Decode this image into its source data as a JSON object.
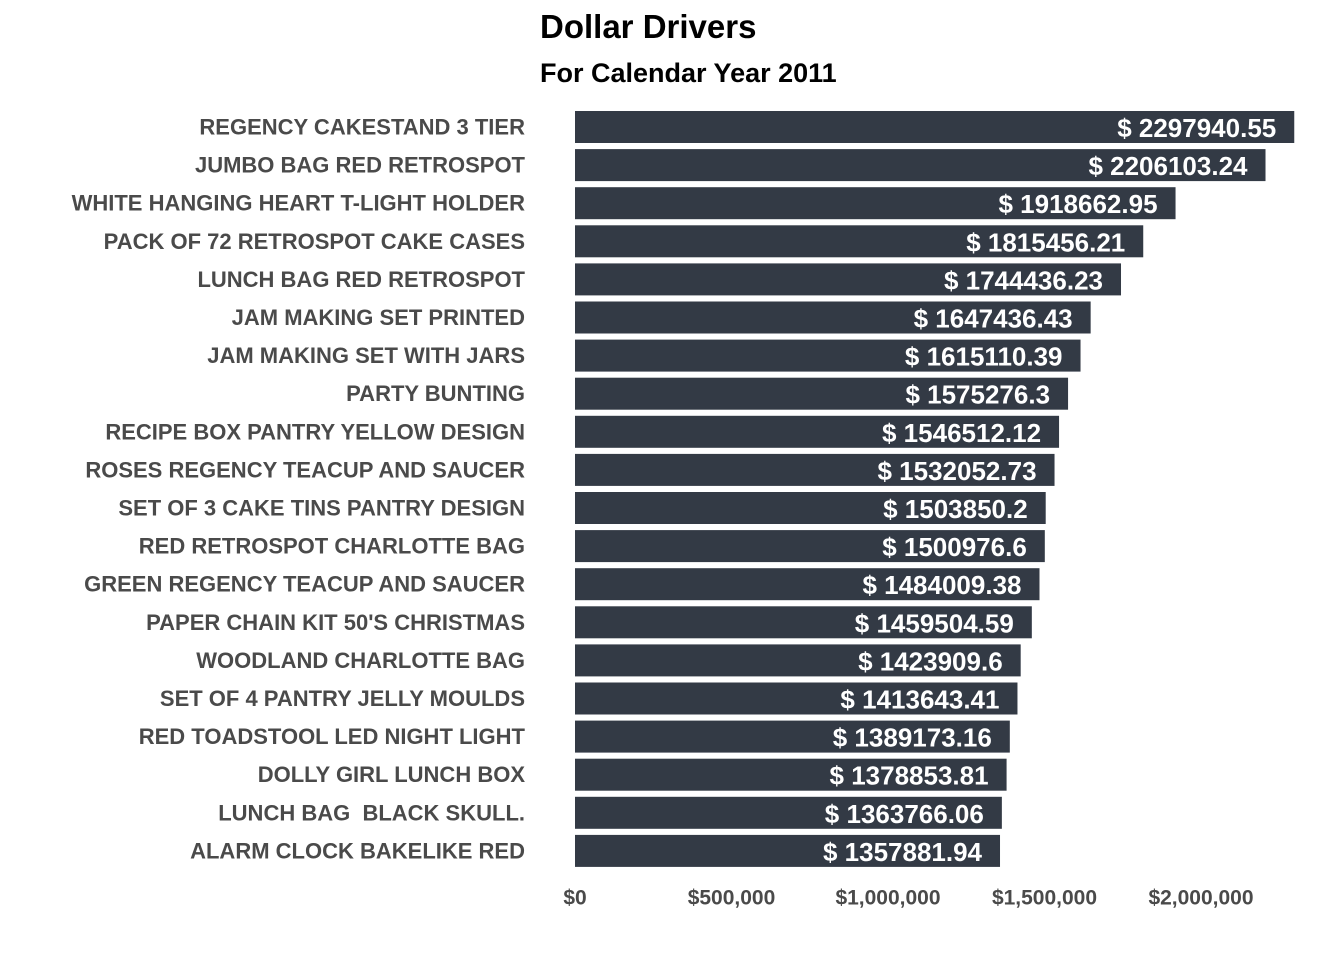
{
  "chart_data": {
    "type": "bar",
    "orientation": "horizontal",
    "title": "Dollar Drivers",
    "subtitle": "For Calendar Year 2011",
    "xlabel": "",
    "ylabel": "",
    "xlim": [
      0,
      2300000
    ],
    "grid": false,
    "bar_color": "#333a45",
    "label_color": "#4a4a4a",
    "value_label_color": "#ffffff",
    "categories": [
      "REGENCY CAKESTAND 3 TIER",
      "JUMBO BAG RED RETROSPOT",
      "WHITE HANGING HEART T-LIGHT HOLDER",
      "PACK OF 72 RETROSPOT CAKE CASES",
      "LUNCH BAG RED RETROSPOT",
      "JAM MAKING SET PRINTED",
      "JAM MAKING SET WITH JARS",
      "PARTY BUNTING",
      "RECIPE BOX PANTRY YELLOW DESIGN",
      "ROSES REGENCY TEACUP AND SAUCER",
      "SET OF 3 CAKE TINS PANTRY DESIGN",
      "RED RETROSPOT CHARLOTTE BAG",
      "GREEN REGENCY TEACUP AND SAUCER",
      "PAPER CHAIN KIT 50'S CHRISTMAS",
      "WOODLAND CHARLOTTE BAG",
      "SET OF 4 PANTRY JELLY MOULDS",
      "RED TOADSTOOL LED NIGHT LIGHT",
      "DOLLY GIRL LUNCH BOX",
      "LUNCH BAG  BLACK SKULL.",
      "ALARM CLOCK BAKELIKE RED"
    ],
    "values": [
      2297940.55,
      2206103.24,
      1918662.95,
      1815456.21,
      1744436.23,
      1647436.43,
      1615110.39,
      1575276.3,
      1546512.12,
      1532052.73,
      1503850.2,
      1500976.6,
      1484009.38,
      1459504.59,
      1423909.6,
      1413643.41,
      1389173.16,
      1378853.81,
      1363766.06,
      1357881.94
    ],
    "value_labels": [
      "$ 2297940.55",
      "$ 2206103.24",
      "$ 1918662.95",
      "$ 1815456.21",
      "$ 1744436.23",
      "$ 1647436.43",
      "$ 1615110.39",
      "$ 1575276.3",
      "$ 1546512.12",
      "$ 1532052.73",
      "$ 1503850.2",
      "$ 1500976.6",
      "$ 1484009.38",
      "$ 1459504.59",
      "$ 1423909.6",
      "$ 1413643.41",
      "$ 1389173.16",
      "$ 1378853.81",
      "$ 1363766.06",
      "$ 1357881.94"
    ],
    "x_ticks": [
      0,
      500000,
      1000000,
      1500000,
      2000000
    ],
    "x_tick_labels": [
      "$0",
      "$500,000",
      "$1,000,000",
      "$1,500,000",
      "$2,000,000"
    ]
  }
}
